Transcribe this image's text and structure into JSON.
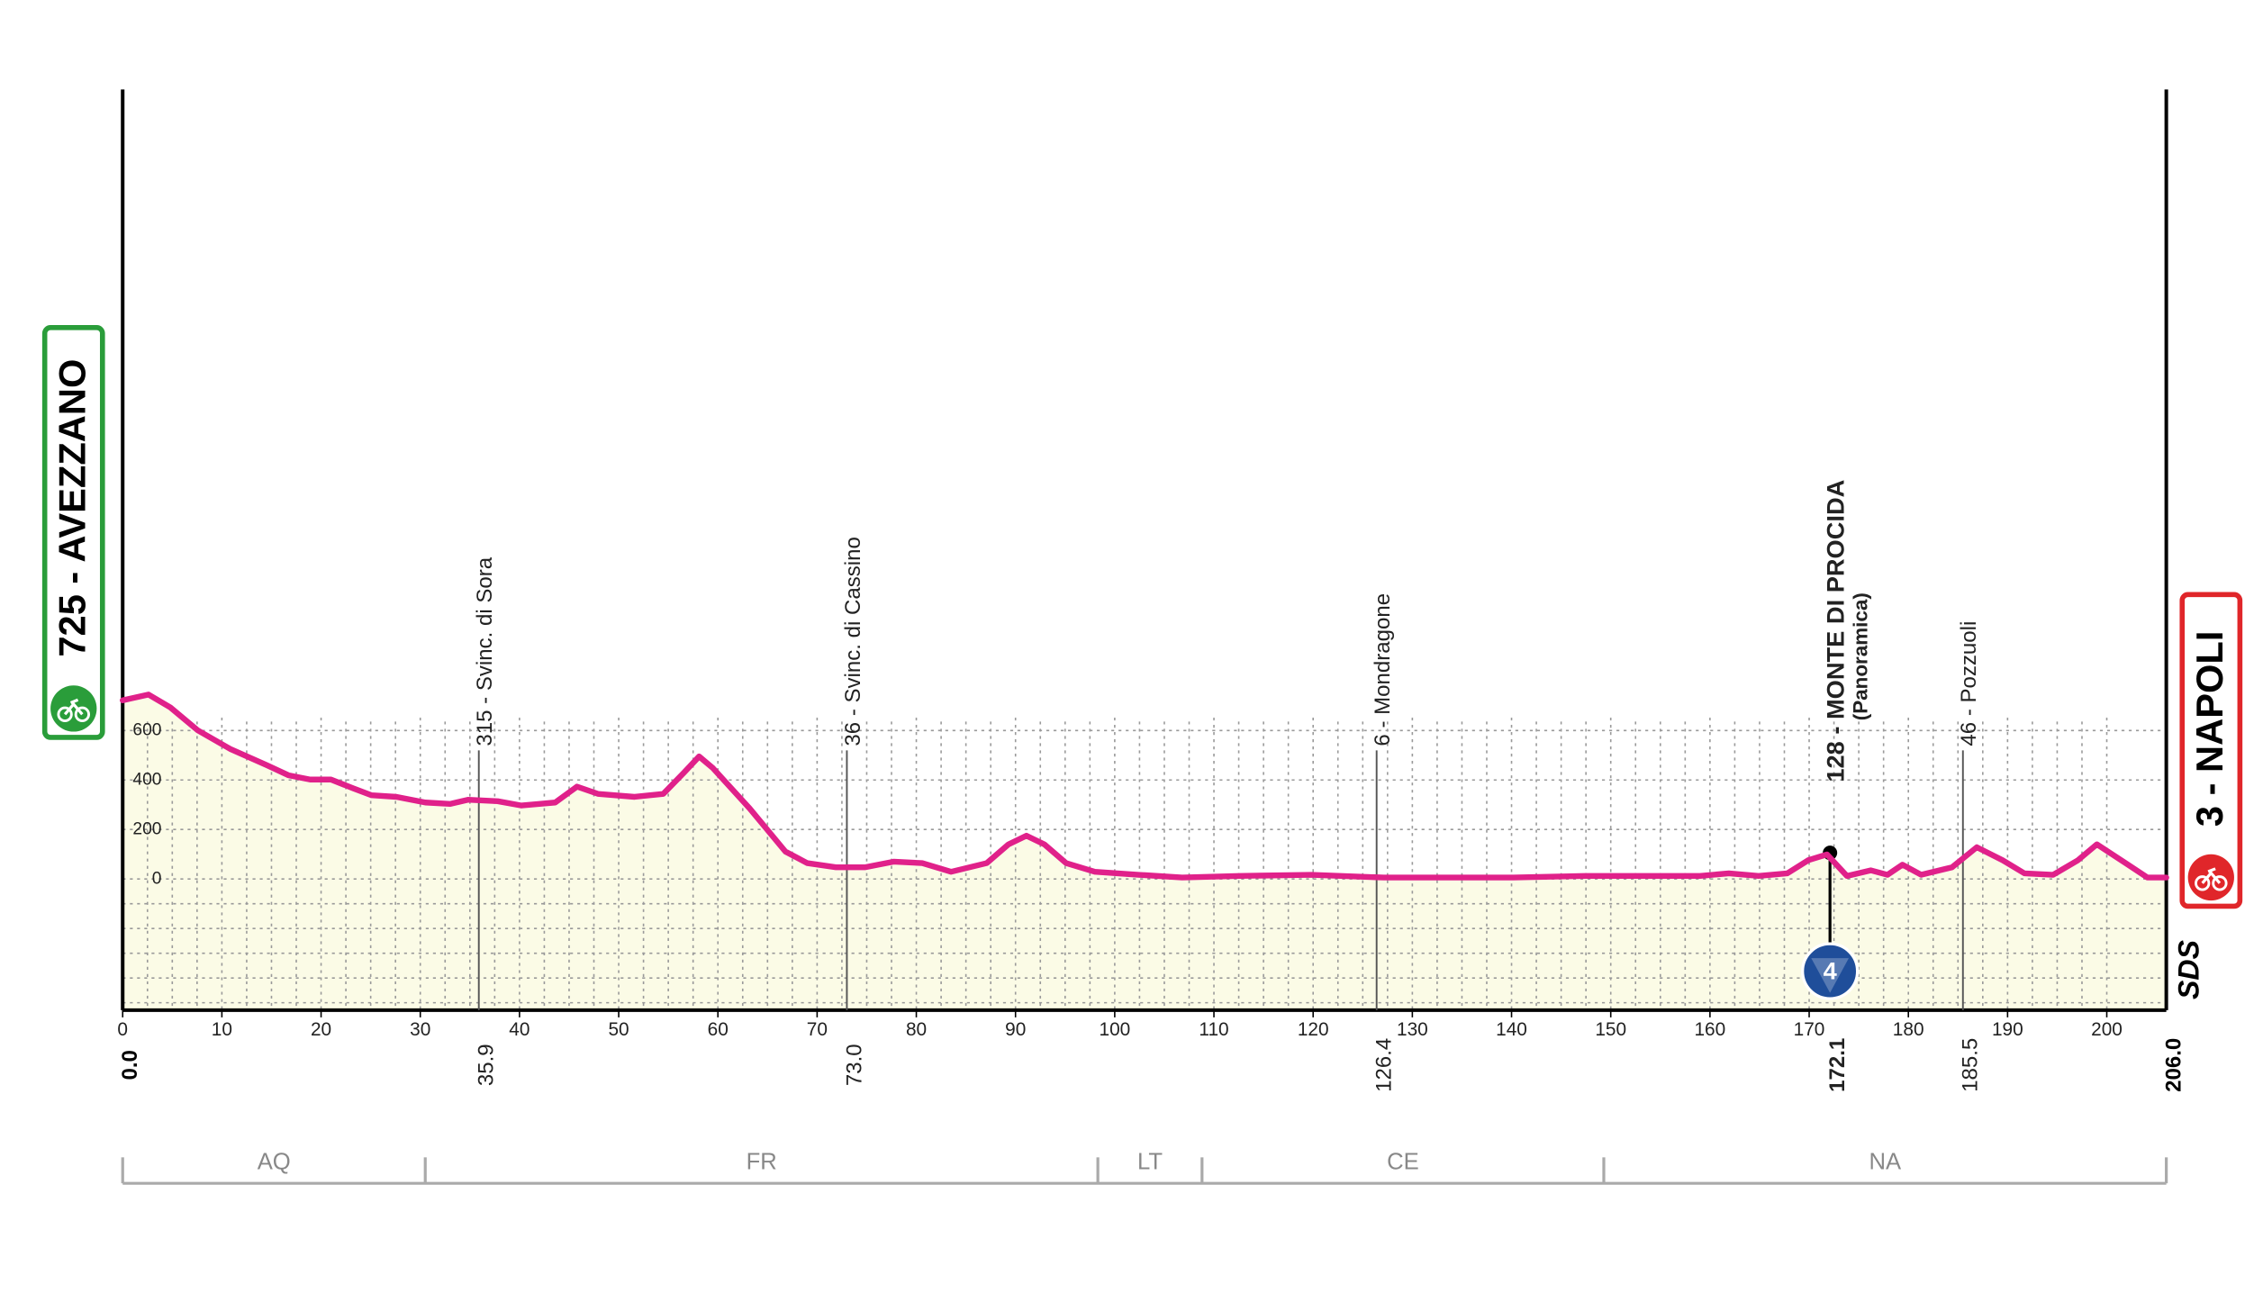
{
  "chart_data": {
    "type": "line",
    "x": [
      0,
      2.6,
      4.8,
      7.6,
      10.9,
      14.5,
      16.7,
      18.9,
      21,
      23.2,
      25.1,
      27.6,
      30.5,
      33,
      34.8,
      37.8,
      40.2,
      43.6,
      45.8,
      47.9,
      51.6,
      54.5,
      56.6,
      58.1,
      59.5,
      63.2,
      66.8,
      69,
      71.9,
      74.8,
      77.7,
      80.6,
      83.5,
      87.1,
      89.3,
      91.1,
      92.9,
      95.1,
      98,
      102.4,
      106.8,
      112.6,
      119.8,
      127.1,
      140.2,
      147.4,
      153.2,
      159,
      161.9,
      164.9,
      167.8,
      169.9,
      171.8,
      173.8,
      176.2,
      177.9,
      179.4,
      181.3,
      184.4,
      186.9,
      189.5,
      191.7,
      194.6,
      197.1,
      199,
      201.9,
      204.1,
      206
    ],
    "values": [
      722,
      745,
      693,
      600,
      524,
      460,
      419,
      402,
      402,
      367,
      338,
      332,
      309,
      303,
      320,
      314,
      297,
      309,
      373,
      344,
      332,
      344,
      431,
      495,
      448,
      285,
      111,
      64,
      47,
      47,
      70,
      64,
      29,
      64,
      140,
      175,
      140,
      64,
      29,
      17,
      6,
      12,
      17,
      6,
      6,
      12,
      12,
      12,
      23,
      12,
      23,
      76,
      99,
      12,
      35,
      17,
      58,
      17,
      47,
      128,
      76,
      23,
      17,
      76,
      140,
      64,
      6,
      6
    ],
    "color": "#e0218a",
    "fill": "#fbfbe6",
    "xlim": [
      0,
      206
    ],
    "ylim": [
      -530,
      3190
    ],
    "xticks": [
      0,
      10,
      20,
      30,
      40,
      50,
      60,
      70,
      80,
      90,
      100,
      110,
      120,
      130,
      140,
      150,
      160,
      170,
      180,
      190,
      200
    ],
    "yticks": [
      0,
      200,
      400,
      600
    ],
    "grid": true,
    "start": {
      "label": "725 - AVEZZANO",
      "color": "#2a9d3a"
    },
    "finish": {
      "label": "3 - NAPOLI",
      "color": "#e0262a"
    },
    "km_start": {
      "value": 0,
      "label": "0.0"
    },
    "km_end": {
      "value": 206,
      "label": "206.0"
    },
    "waypoints": [
      {
        "km": {
          "value": 35.9,
          "label": "35.9"
        },
        "name": "315 - Svinc. di Sora"
      },
      {
        "km": {
          "value": 73,
          "label": "73.0"
        },
        "name": "36 - Svinc. di Cassino"
      },
      {
        "km": {
          "value": 126.4,
          "label": "126.4"
        },
        "name": "6 - Mondragone"
      },
      {
        "km": {
          "value": 172.1,
          "label": "172.1"
        },
        "name": "128 - MONTE DI PROCIDA",
        "subtitle": "(Panoramica)",
        "category": "4"
      },
      {
        "km": {
          "value": 185.5,
          "label": "185.5"
        },
        "name": "46 - Pozzuoli"
      }
    ],
    "regions": [
      {
        "name": "AQ",
        "from": 0,
        "to": 30.5
      },
      {
        "name": "FR",
        "from": 30.5,
        "to": 98.3
      },
      {
        "name": "LT",
        "from": 98.3,
        "to": 108.8
      },
      {
        "name": "CE",
        "from": 108.8,
        "to": 149.3
      },
      {
        "name": "NA",
        "from": 149.3,
        "to": 206
      }
    ],
    "logo": "SDS"
  }
}
